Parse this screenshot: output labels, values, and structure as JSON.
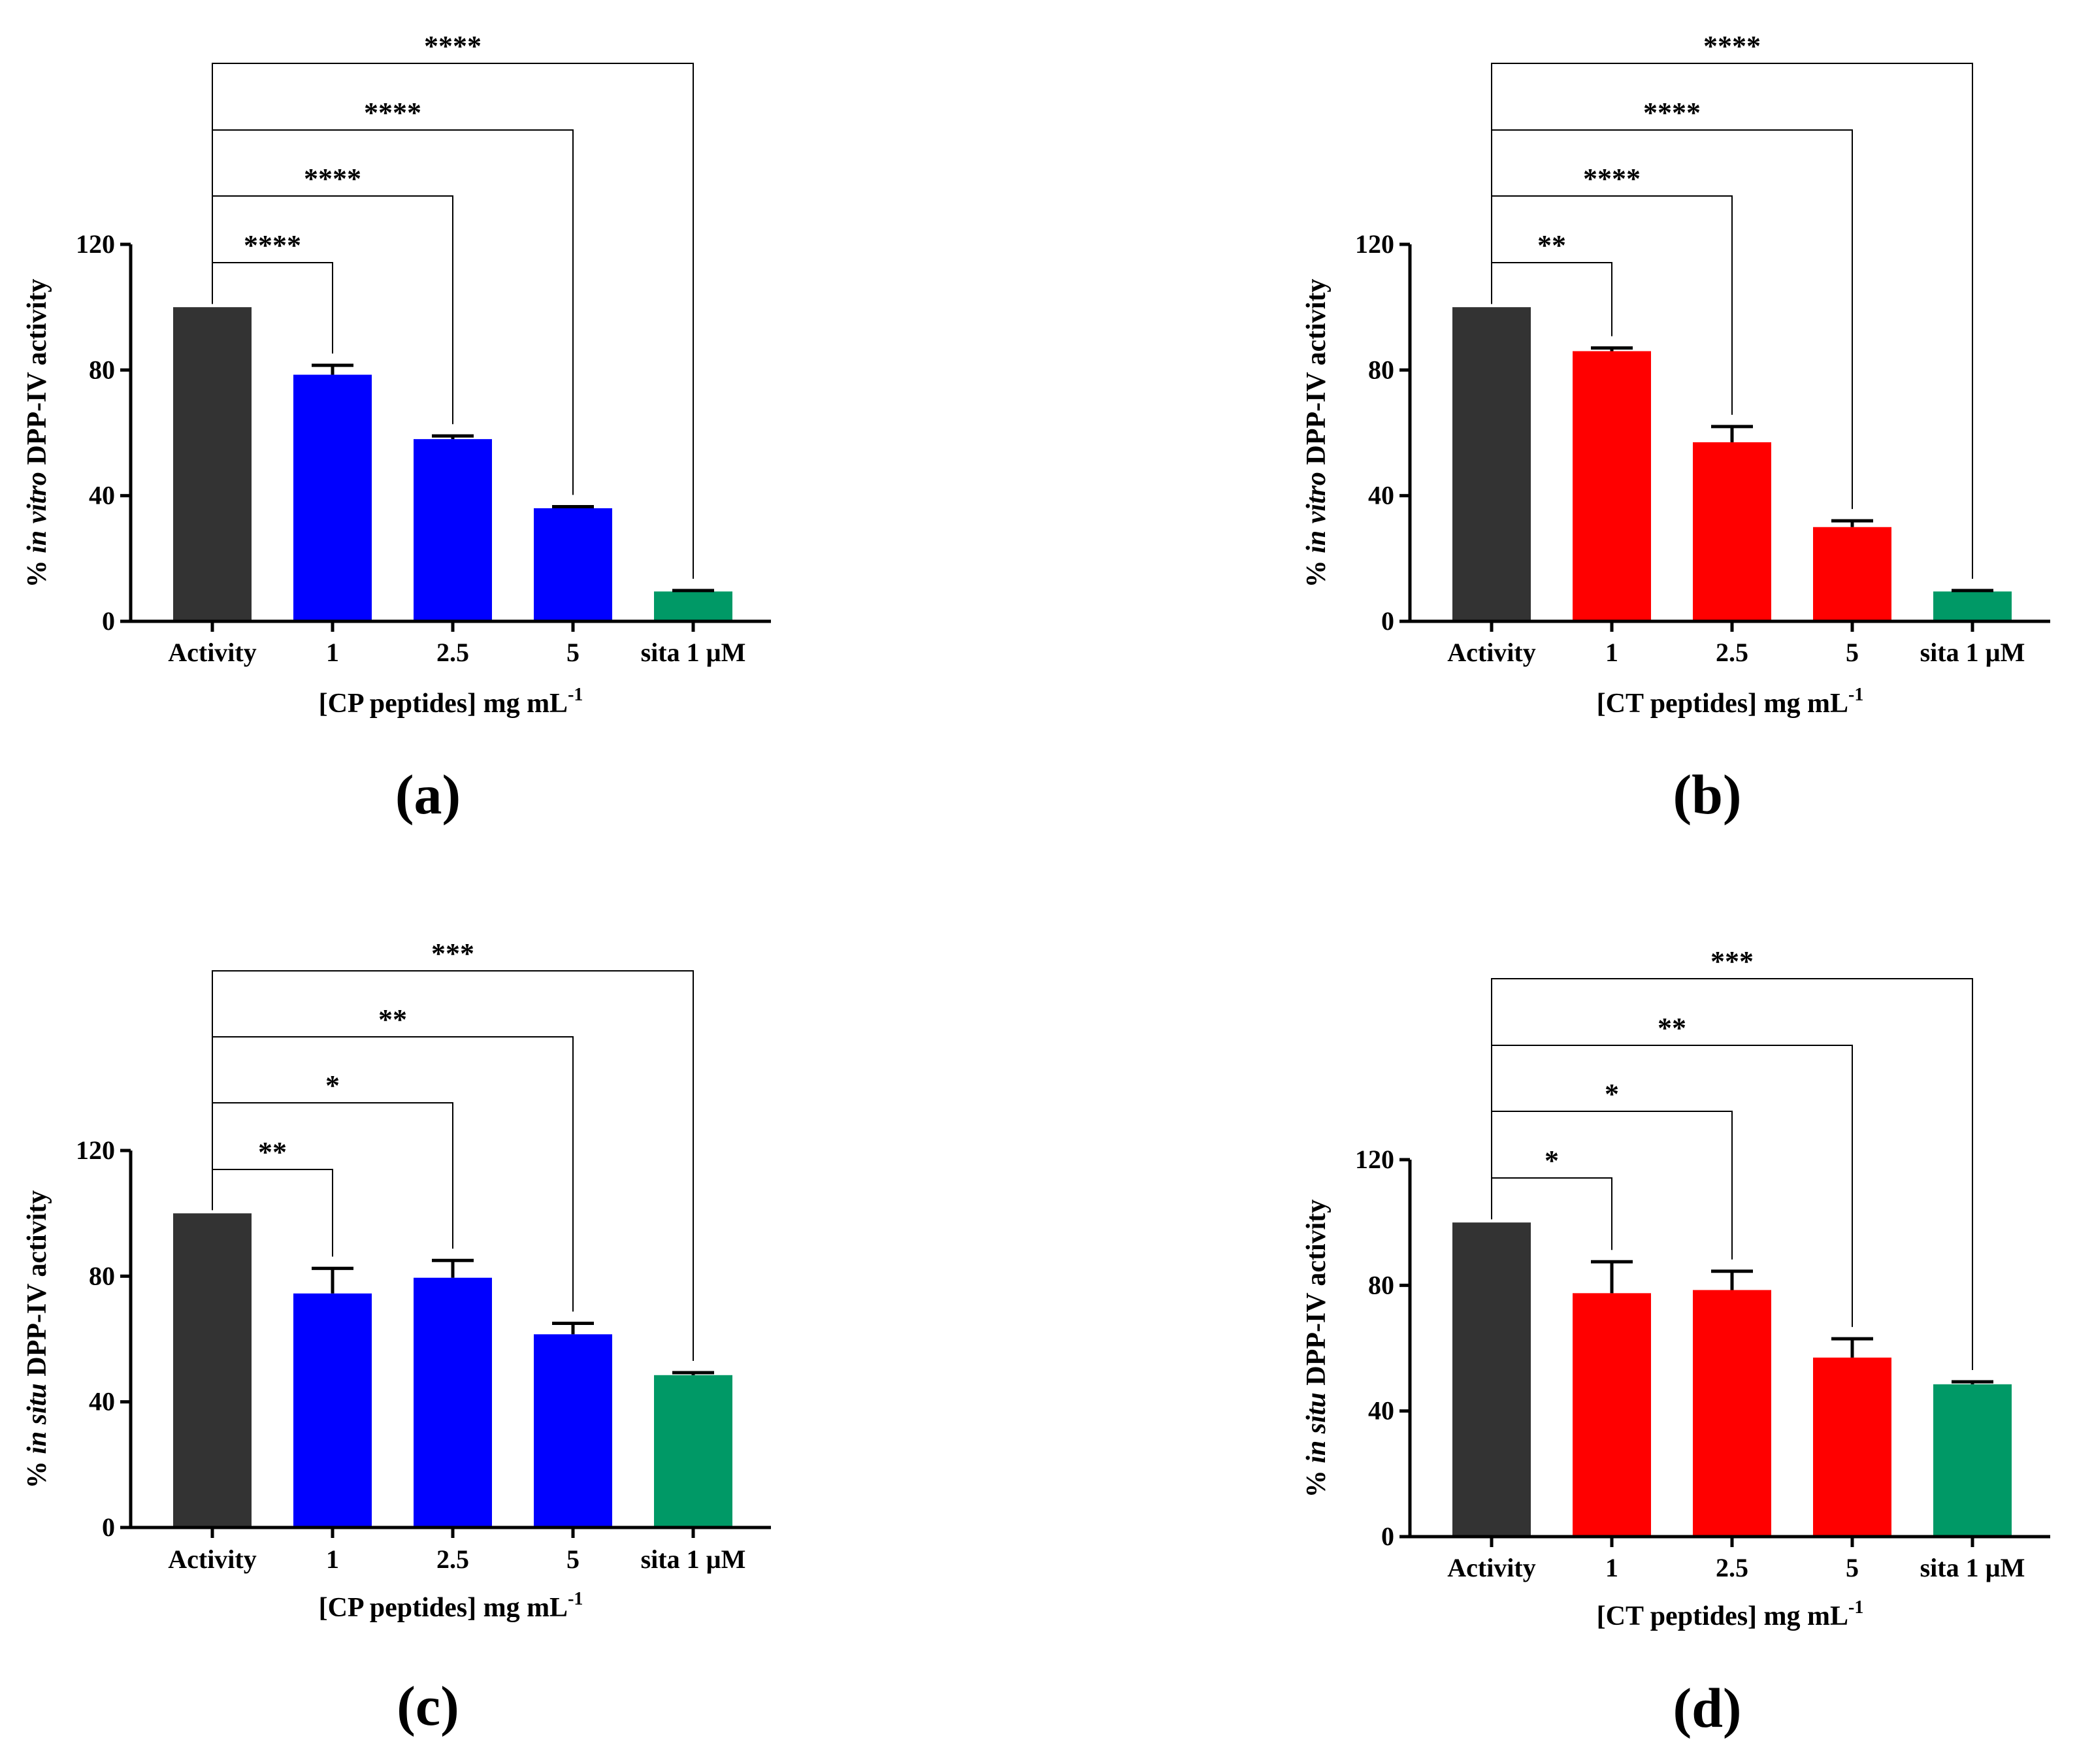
{
  "colors": {
    "activity": "#333333",
    "cp": "#0000ff",
    "ct": "#ff0000",
    "sita": "#009966",
    "axis": "#000000",
    "bracket": "#000000"
  },
  "chart_data": [
    {
      "type": "bar",
      "panel_label": "(a)",
      "categories": [
        "Activity",
        "1",
        "2.5",
        "5",
        "sita 1 µM"
      ],
      "values": [
        100,
        78.5,
        58,
        36,
        9.5
      ],
      "errors": [
        0,
        3,
        1,
        0.5,
        0.3
      ],
      "bar_colors": [
        "activity",
        "cp",
        "cp",
        "cp",
        "sita"
      ],
      "ylim": [
        0,
        120
      ],
      "yticks": [
        "0",
        "40",
        "80",
        "120"
      ],
      "ylabel": {
        "pre": "% ",
        "italic": "in vitro",
        "post": " DPP-IV activity"
      },
      "xlabel": {
        "main": "[CP peptides] mg mL",
        "sup": "-1"
      },
      "significance": [
        {
          "from": 0,
          "to": 1,
          "label": "****"
        },
        {
          "from": 0,
          "to": 2,
          "label": "****"
        },
        {
          "from": 0,
          "to": 3,
          "label": "****"
        },
        {
          "from": 0,
          "to": 4,
          "label": "****"
        }
      ]
    },
    {
      "type": "bar",
      "panel_label": "(b)",
      "categories": [
        "Activity",
        "1",
        "2.5",
        "5",
        "sita 1 µM"
      ],
      "values": [
        100,
        86,
        57,
        30,
        9.5
      ],
      "errors": [
        0,
        1,
        5,
        2,
        0.3
      ],
      "bar_colors": [
        "activity",
        "ct",
        "ct",
        "ct",
        "sita"
      ],
      "ylim": [
        0,
        120
      ],
      "yticks": [
        "0",
        "40",
        "80",
        "120"
      ],
      "ylabel": {
        "pre": "% ",
        "italic": "in vitro",
        "post": " DPP-IV activity"
      },
      "xlabel": {
        "main": "[CT peptides] mg mL",
        "sup": "-1"
      },
      "significance": [
        {
          "from": 0,
          "to": 1,
          "label": "**"
        },
        {
          "from": 0,
          "to": 2,
          "label": "****"
        },
        {
          "from": 0,
          "to": 3,
          "label": "****"
        },
        {
          "from": 0,
          "to": 4,
          "label": "****"
        }
      ]
    },
    {
      "type": "bar",
      "panel_label": "(c)",
      "categories": [
        "Activity",
        "1",
        "2.5",
        "5",
        "sita 1 µM"
      ],
      "values": [
        100,
        74.5,
        79.5,
        61.5,
        48.5
      ],
      "errors": [
        0,
        8,
        5.5,
        3.5,
        0.8
      ],
      "bar_colors": [
        "activity",
        "cp",
        "cp",
        "cp",
        "sita"
      ],
      "ylim": [
        0,
        120
      ],
      "yticks": [
        "0",
        "40",
        "80",
        "120"
      ],
      "ylabel": {
        "pre": "% ",
        "italic": "in situ",
        "post": " DPP-IV activity"
      },
      "xlabel": {
        "main": "[CP peptides] mg mL",
        "sup": "-1"
      },
      "significance": [
        {
          "from": 0,
          "to": 1,
          "label": "**"
        },
        {
          "from": 0,
          "to": 2,
          "label": "*"
        },
        {
          "from": 0,
          "to": 3,
          "label": "**"
        },
        {
          "from": 0,
          "to": 4,
          "label": "***"
        }
      ]
    },
    {
      "type": "bar",
      "panel_label": "(d)",
      "categories": [
        "Activity",
        "1",
        "2.5",
        "5",
        "sita 1 µM"
      ],
      "values": [
        100,
        77.5,
        78.5,
        57,
        48.5
      ],
      "errors": [
        0,
        10,
        6,
        6,
        0.8
      ],
      "bar_colors": [
        "activity",
        "ct",
        "ct",
        "ct",
        "sita"
      ],
      "ylim": [
        0,
        120
      ],
      "yticks": [
        "0",
        "40",
        "80",
        "120"
      ],
      "ylabel": {
        "pre": "% ",
        "italic": "in situ",
        "post": " DPP-IV activity"
      },
      "xlabel": {
        "main": "[CT peptides] mg mL",
        "sup": "-1"
      },
      "significance": [
        {
          "from": 0,
          "to": 1,
          "label": "*"
        },
        {
          "from": 0,
          "to": 2,
          "label": "*"
        },
        {
          "from": 0,
          "to": 3,
          "label": "**"
        },
        {
          "from": 0,
          "to": 4,
          "label": "***"
        }
      ]
    }
  ]
}
